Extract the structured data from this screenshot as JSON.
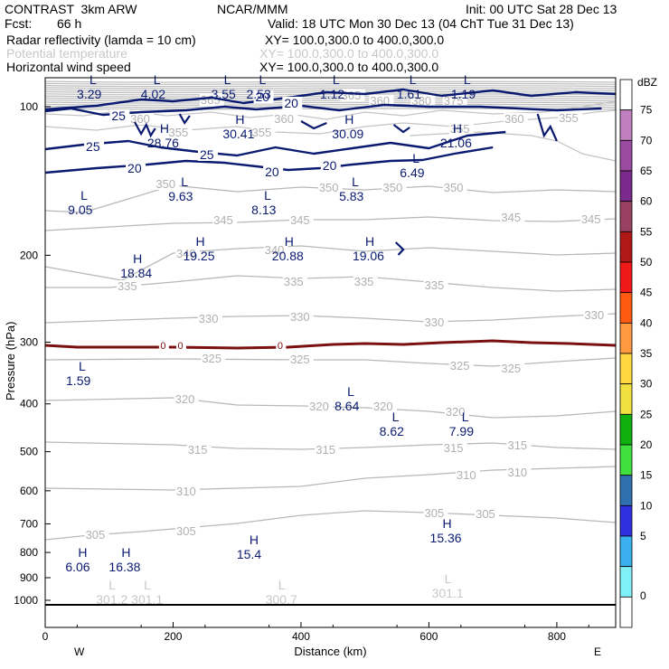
{
  "header": {
    "model": "CONTRAST  3km ARW",
    "org": "NCAR/MMM",
    "init": "Init: 00 UTC Sat 28 Dec 13",
    "fcst_label": "Fcst:",
    "fcst_value": "66 h",
    "valid": "Valid: 18 UTC Mon 30 Dec 13 (04 ChT Tue 31 Dec 13)",
    "fields": [
      {
        "name": "Radar reflectivity (lamda = 10 cm)",
        "xy": "XY= 100.0,300.0 to 400.0,300.0",
        "color": "#000000"
      },
      {
        "name": "Potential temperature",
        "xy": "XY= 100.0,300.0 to 400.0,300.0",
        "color": "#c8c8c8"
      },
      {
        "name": "Horizontal wind speed",
        "xy": "XY= 100.0,300.0 to 400.0,300.0",
        "color": "#000000"
      }
    ]
  },
  "chart_data": {
    "type": "contour",
    "xlabel": "Distance (km)",
    "ylabel": "Pressure (hPa)",
    "xlim": [
      0,
      892
    ],
    "ylim": [
      1050,
      55
    ],
    "yscale": "log",
    "x_ticks": [
      0,
      200,
      400,
      600,
      800
    ],
    "y_ticks": [
      100,
      200,
      300,
      400,
      500,
      600,
      700,
      800,
      900,
      1000
    ],
    "end_labels": {
      "left": "W",
      "right": "E"
    },
    "colorbar": {
      "title": "dBZ",
      "levels": [
        75,
        70,
        65,
        60,
        55,
        50,
        45,
        40,
        35,
        30,
        25,
        20,
        15,
        10,
        5
      ],
      "bottom_label": "0",
      "colors": [
        "#ffffff",
        "#c080c0",
        "#9a4aa0",
        "#7a2a8a",
        "#9a4060",
        "#b01818",
        "#f01818",
        "#ff5a10",
        "#ff9a40",
        "#ffd840",
        "#f0e040",
        "#10b010",
        "#40e040",
        "#2e70b0",
        "#3030e0",
        "#3ab0f0",
        "#80f0f8",
        "#ffffff"
      ]
    },
    "theta_contours": [
      {
        "label": "350",
        "points": [
          [
            0,
            233
          ],
          [
            60,
            235
          ],
          [
            200,
            205
          ],
          [
            300,
            212
          ],
          [
            400,
            207
          ],
          [
            500,
            210
          ],
          [
            600,
            206
          ],
          [
            700,
            213
          ],
          [
            800,
            210
          ],
          [
            892,
            212
          ]
        ]
      },
      {
        "label": "345",
        "points": [
          [
            0,
            255
          ],
          [
            200,
            247
          ],
          [
            300,
            246
          ],
          [
            400,
            243
          ],
          [
            500,
            243
          ],
          [
            600,
            240
          ],
          [
            700,
            244
          ],
          [
            800,
            245
          ],
          [
            892,
            242
          ]
        ]
      },
      {
        "label": "340",
        "points": [
          [
            0,
            295
          ],
          [
            120,
            310
          ],
          [
            200,
            280
          ],
          [
            300,
            275
          ],
          [
            400,
            272
          ],
          [
            500,
            278
          ],
          [
            600,
            274
          ],
          [
            700,
            278
          ],
          [
            800,
            282
          ],
          [
            892,
            280
          ]
        ]
      },
      {
        "label": "335",
        "points": [
          [
            0,
            318
          ],
          [
            100,
            318
          ],
          [
            200,
            312
          ],
          [
            300,
            305
          ],
          [
            400,
            308
          ],
          [
            500,
            306
          ],
          [
            600,
            312
          ],
          [
            700,
            318
          ],
          [
            800,
            322
          ],
          [
            892,
            320
          ]
        ]
      },
      {
        "label": "330",
        "points": [
          [
            0,
            357
          ],
          [
            200,
            352
          ],
          [
            300,
            350
          ],
          [
            400,
            349
          ],
          [
            500,
            352
          ],
          [
            600,
            356
          ],
          [
            700,
            354
          ],
          [
            800,
            350
          ],
          [
            892,
            347
          ]
        ]
      },
      {
        "label": "325",
        "points": [
          [
            0,
            398
          ],
          [
            200,
            397
          ],
          [
            400,
            398
          ],
          [
            500,
            398
          ],
          [
            600,
            402
          ],
          [
            700,
            405
          ],
          [
            800,
            400
          ],
          [
            892,
            396
          ]
        ]
      },
      {
        "label": "320",
        "points": [
          [
            0,
            443
          ],
          [
            200,
            440
          ],
          [
            300,
            448
          ],
          [
            400,
            449
          ],
          [
            500,
            451
          ],
          [
            600,
            455
          ],
          [
            700,
            462
          ],
          [
            800,
            460
          ],
          [
            892,
            455
          ]
        ]
      },
      {
        "label": "315",
        "points": [
          [
            0,
            489
          ],
          [
            200,
            492
          ],
          [
            300,
            496
          ],
          [
            400,
            497
          ],
          [
            500,
            495
          ],
          [
            600,
            492
          ],
          [
            700,
            490
          ],
          [
            800,
            495
          ],
          [
            892,
            497
          ]
        ]
      },
      {
        "label": "310",
        "points": [
          [
            0,
            540
          ],
          [
            200,
            542
          ],
          [
            300,
            540
          ],
          [
            400,
            538
          ],
          [
            500,
            529
          ],
          [
            600,
            525
          ],
          [
            700,
            520
          ],
          [
            800,
            518
          ],
          [
            892,
            516
          ]
        ]
      },
      {
        "label": "305",
        "points": [
          [
            0,
            597
          ],
          [
            70,
            592
          ],
          [
            150,
            588
          ],
          [
            300,
            579
          ],
          [
            400,
            570
          ],
          [
            500,
            565
          ],
          [
            600,
            567
          ],
          [
            700,
            570
          ],
          [
            800,
            573
          ],
          [
            892,
            578
          ]
        ]
      }
    ],
    "theta_labels": [
      {
        "x": 445,
        "y": 207,
        "text": "350"
      },
      {
        "x": 545,
        "y": 207,
        "text": "350"
      },
      {
        "x": 640,
        "y": 207,
        "text": "350"
      },
      {
        "x": 190,
        "y": 203,
        "text": "350"
      },
      {
        "x": 280,
        "y": 243,
        "text": "345"
      },
      {
        "x": 400,
        "y": 243,
        "text": "345"
      },
      {
        "x": 730,
        "y": 240,
        "text": "345"
      },
      {
        "x": 855,
        "y": 242,
        "text": "345"
      },
      {
        "x": 360,
        "y": 276,
        "text": "340"
      },
      {
        "x": 222,
        "y": 280,
        "text": "340"
      },
      {
        "x": 130,
        "y": 316,
        "text": "335"
      },
      {
        "x": 390,
        "y": 311,
        "text": "335"
      },
      {
        "x": 500,
        "y": 311,
        "text": "335"
      },
      {
        "x": 610,
        "y": 315,
        "text": "335"
      },
      {
        "x": 257,
        "y": 352,
        "text": "330"
      },
      {
        "x": 400,
        "y": 350,
        "text": "330"
      },
      {
        "x": 610,
        "y": 356,
        "text": "330"
      },
      {
        "x": 860,
        "y": 348,
        "text": "330"
      },
      {
        "x": 262,
        "y": 396,
        "text": "325"
      },
      {
        "x": 400,
        "y": 397,
        "text": "325"
      },
      {
        "x": 650,
        "y": 404,
        "text": "325"
      },
      {
        "x": 730,
        "y": 407,
        "text": "325"
      },
      {
        "x": 220,
        "y": 441,
        "text": "320"
      },
      {
        "x": 430,
        "y": 449,
        "text": "320"
      },
      {
        "x": 530,
        "y": 449,
        "text": "320"
      },
      {
        "x": 643,
        "y": 455,
        "text": "320"
      },
      {
        "x": 240,
        "y": 497,
        "text": "315"
      },
      {
        "x": 440,
        "y": 497,
        "text": "315"
      },
      {
        "x": 640,
        "y": 495,
        "text": "315"
      },
      {
        "x": 740,
        "y": 492,
        "text": "315"
      },
      {
        "x": 222,
        "y": 543,
        "text": "310"
      },
      {
        "x": 660,
        "y": 525,
        "text": "310"
      },
      {
        "x": 740,
        "y": 522,
        "text": "310"
      },
      {
        "x": 80,
        "y": 591,
        "text": "305"
      },
      {
        "x": 222,
        "y": 587,
        "text": "305"
      },
      {
        "x": 610,
        "y": 567,
        "text": "305"
      },
      {
        "x": 690,
        "y": 568,
        "text": "305"
      },
      {
        "x": 480,
        "y": 105,
        "text": "365"
      },
      {
        "x": 525,
        "y": 111,
        "text": "360"
      },
      {
        "x": 375,
        "y": 131,
        "text": "360"
      },
      {
        "x": 150,
        "y": 131,
        "text": "360"
      },
      {
        "x": 260,
        "y": 110,
        "text": "365"
      },
      {
        "x": 735,
        "y": 131,
        "text": "360"
      },
      {
        "x": 640,
        "y": 111,
        "text": "375"
      },
      {
        "x": 590,
        "y": 111,
        "text": "380"
      },
      {
        "x": 340,
        "y": 146,
        "text": "355"
      },
      {
        "x": 210,
        "y": 146,
        "text": "355"
      },
      {
        "x": 650,
        "y": 142,
        "text": "355"
      },
      {
        "x": 820,
        "y": 130,
        "text": "355"
      }
    ],
    "wind_contours": [
      {
        "label": "25",
        "points": [
          [
            0,
            123
          ],
          [
            40,
            120
          ],
          [
            90,
            127
          ],
          [
            150,
            124
          ],
          [
            220,
            122
          ],
          [
            280,
            118
          ],
          [
            330,
            121
          ],
          [
            400,
            117
          ],
          [
            460,
            122
          ],
          [
            530,
            116
          ],
          [
            600,
            118
          ],
          [
            680,
            118
          ],
          [
            740,
            120
          ],
          [
            800,
            122
          ],
          [
            870,
            120
          ]
        ]
      },
      {
        "label": "20",
        "points": [
          [
            0,
            121
          ],
          [
            80,
            117
          ],
          [
            150,
            110
          ],
          [
            200,
            112
          ],
          [
            260,
            108
          ],
          [
            310,
            114
          ],
          [
            380,
            108
          ],
          [
            440,
            102
          ],
          [
            500,
            104
          ],
          [
            560,
            99
          ],
          [
            620,
            106
          ],
          [
            700,
            100
          ],
          [
            760,
            106
          ],
          [
            830,
            102
          ],
          [
            892,
            104
          ]
        ]
      },
      {
        "label": "25",
        "points": [
          [
            0,
            165
          ],
          [
            60,
            160
          ],
          [
            130,
            156
          ],
          [
            180,
            163
          ],
          [
            240,
            168
          ],
          [
            300,
            172
          ],
          [
            360,
            163
          ],
          [
            420,
            170
          ],
          [
            480,
            164
          ],
          [
            540,
            158
          ],
          [
            600,
            164
          ],
          [
            660,
            150
          ],
          [
            720,
            146
          ]
        ]
      },
      {
        "label": "20",
        "points": [
          [
            0,
            191
          ],
          [
            80,
            186
          ],
          [
            160,
            182
          ],
          [
            220,
            178
          ],
          [
            280,
            180
          ],
          [
            330,
            184
          ],
          [
            380,
            188
          ],
          [
            430,
            186
          ],
          [
            480,
            182
          ],
          [
            540,
            178
          ],
          [
            590,
            177
          ],
          [
            640,
            170
          ],
          [
            700,
            163
          ]
        ]
      }
    ],
    "wind_labels": [
      {
        "x": 115,
        "y": 128,
        "text": "25"
      },
      {
        "x": 340,
        "y": 107,
        "text": "20"
      },
      {
        "x": 385,
        "y": 114,
        "text": "20"
      },
      {
        "x": 75,
        "y": 162,
        "text": "25"
      },
      {
        "x": 253,
        "y": 171,
        "text": "25"
      },
      {
        "x": 140,
        "y": 186,
        "text": "20"
      },
      {
        "x": 355,
        "y": 190,
        "text": "20"
      },
      {
        "x": 445,
        "y": 183,
        "text": "20"
      }
    ],
    "zero_contour": {
      "label": "0",
      "points": [
        [
          0,
          382
        ],
        [
          50,
          384
        ],
        [
          120,
          384
        ],
        [
          200,
          384
        ],
        [
          300,
          385
        ],
        [
          380,
          384
        ],
        [
          450,
          381
        ],
        [
          500,
          380
        ],
        [
          560,
          381
        ],
        [
          620,
          379
        ],
        [
          700,
          377
        ],
        [
          760,
          379
        ],
        [
          820,
          380
        ],
        [
          892,
          382
        ]
      ],
      "label_x": [
        185,
        212,
        368
      ]
    },
    "extrema": [
      {
        "type": "L",
        "x": 75,
        "y": 93,
        "value": "3.29"
      },
      {
        "type": "L",
        "x": 175,
        "y": 93,
        "value": "4.02"
      },
      {
        "type": "L",
        "x": 285,
        "y": 93,
        "value": "3.55"
      },
      {
        "type": "L",
        "x": 340,
        "y": 93,
        "value": "2.53"
      },
      {
        "type": "L",
        "x": 455,
        "y": 93,
        "value": "1.12"
      },
      {
        "type": "L",
        "x": 575,
        "y": 93,
        "value": "1.61"
      },
      {
        "type": "L",
        "x": 660,
        "y": 93,
        "value": "1.19"
      },
      {
        "type": "H",
        "x": 185,
        "y": 147,
        "value": "28.76"
      },
      {
        "type": "H",
        "x": 303,
        "y": 137,
        "value": "30.41"
      },
      {
        "type": "H",
        "x": 474,
        "y": 137,
        "value": "30.09"
      },
      {
        "type": "H",
        "x": 643,
        "y": 147,
        "value": "21.06"
      },
      {
        "type": "L",
        "x": 580,
        "y": 180,
        "value": "6.49"
      },
      {
        "type": "L",
        "x": 218,
        "y": 206,
        "value": "9.63"
      },
      {
        "type": "L",
        "x": 61,
        "y": 221,
        "value": "9.05"
      },
      {
        "type": "L",
        "x": 348,
        "y": 221,
        "value": "8.13"
      },
      {
        "type": "L",
        "x": 485,
        "y": 206,
        "value": "5.83"
      },
      {
        "type": "H",
        "x": 241,
        "y": 272,
        "value": "19.25"
      },
      {
        "type": "H",
        "x": 380,
        "y": 272,
        "value": "20.88"
      },
      {
        "type": "H",
        "x": 506,
        "y": 272,
        "value": "19.06"
      },
      {
        "type": "H",
        "x": 143,
        "y": 291,
        "value": "18.84"
      },
      {
        "type": "L",
        "x": 58,
        "y": 410,
        "value": "1.59"
      },
      {
        "type": "L",
        "x": 478,
        "y": 438,
        "value": "8.64"
      },
      {
        "type": "L",
        "x": 548,
        "y": 466,
        "value": "8.62"
      },
      {
        "type": "L",
        "x": 657,
        "y": 466,
        "value": "7.99"
      },
      {
        "type": "H",
        "x": 627,
        "y": 584,
        "value": "15.36"
      },
      {
        "type": "H",
        "x": 325,
        "y": 602,
        "value": "15.4"
      },
      {
        "type": "H",
        "x": 57,
        "y": 616,
        "value": "6.06"
      },
      {
        "type": "H",
        "x": 125,
        "y": 616,
        "value": "16.38"
      },
      {
        "type": "L",
        "x": 105,
        "y": 652,
        "value": "301.2",
        "color": "#c8c8c8"
      },
      {
        "type": "L",
        "x": 160,
        "y": 652,
        "value": "301.1",
        "color": "#c8c8c8"
      },
      {
        "type": "L",
        "x": 370,
        "y": 652,
        "value": "300.7",
        "color": "#c8c8c8"
      },
      {
        "type": "L",
        "x": 630,
        "y": 645,
        "value": "301.1",
        "color": "#c8c8c8"
      }
    ]
  }
}
